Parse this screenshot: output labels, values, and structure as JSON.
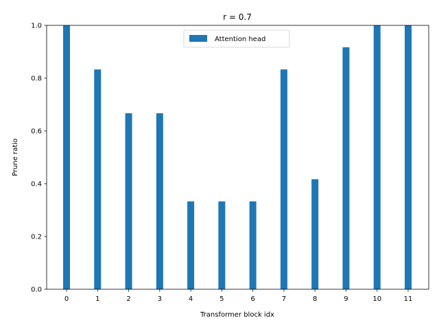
{
  "chart_data": {
    "type": "bar",
    "title": "r = 0.7",
    "xlabel": "Transformer block idx",
    "ylabel": "Prune ratio",
    "categories": [
      "0",
      "1",
      "2",
      "3",
      "4",
      "5",
      "6",
      "7",
      "8",
      "9",
      "10",
      "11"
    ],
    "series": [
      {
        "name": "Attention head",
        "color": "#1f77b4",
        "values": [
          1.0,
          0.833,
          0.667,
          0.667,
          0.333,
          0.333,
          0.333,
          0.833,
          0.417,
          0.917,
          1.0,
          1.0
        ]
      }
    ],
    "ylim": [
      0,
      1.0
    ],
    "yticks": [
      "0.0",
      "0.2",
      "0.4",
      "0.6",
      "0.8",
      "1.0"
    ],
    "grid": false,
    "legend_position": "upper-center"
  }
}
